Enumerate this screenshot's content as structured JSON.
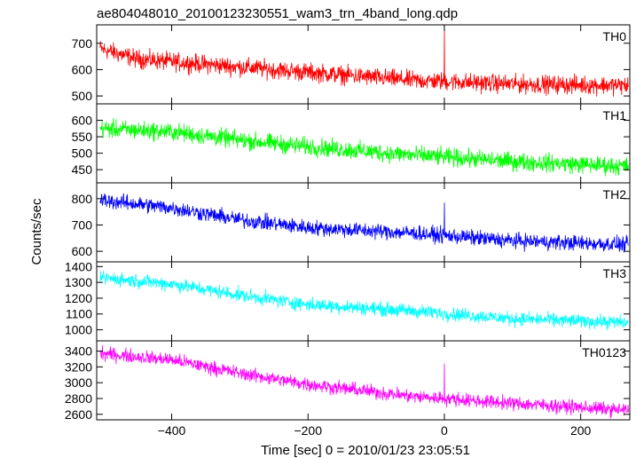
{
  "chart_data": {
    "type": "line",
    "title": "ae804048010_20100123230551_wam3_trn_4band_long.qdp",
    "xlabel": "Time [sec] 0 = 2010/01/23 23:05:51",
    "ylabel": "Counts/sec",
    "xlim": [
      -510,
      272
    ],
    "x_ticks": [
      -400,
      -200,
      0,
      200
    ],
    "x_tick_labels": [
      "−400",
      "−200",
      "0",
      "200"
    ],
    "grid": false,
    "panels": [
      {
        "name": "TH0",
        "color": "#ff0000",
        "ylim": [
          470,
          770
        ],
        "y_ticks": [
          500,
          600,
          700
        ],
        "trend": [
          [
            -505,
            680
          ],
          [
            -450,
            640
          ],
          [
            -350,
            620
          ],
          [
            -200,
            590
          ],
          [
            -50,
            560
          ],
          [
            100,
            545
          ],
          [
            270,
            540
          ]
        ],
        "noise": 38,
        "spike": {
          "x": 0,
          "y": 760
        }
      },
      {
        "name": "TH1",
        "color": "#00ff00",
        "ylim": [
          410,
          650
        ],
        "y_ticks": [
          450,
          500,
          550,
          600
        ],
        "trend": [
          [
            -505,
            575
          ],
          [
            -400,
            565
          ],
          [
            -300,
            540
          ],
          [
            -200,
            520
          ],
          [
            -50,
            495
          ],
          [
            100,
            475
          ],
          [
            270,
            460
          ]
        ],
        "noise": 30,
        "spike": null
      },
      {
        "name": "TH2",
        "color": "#0000ff",
        "ylim": [
          560,
          860
        ],
        "y_ticks": [
          600,
          700,
          800
        ],
        "trend": [
          [
            -505,
            795
          ],
          [
            -400,
            765
          ],
          [
            -300,
            720
          ],
          [
            -200,
            690
          ],
          [
            -50,
            670
          ],
          [
            100,
            640
          ],
          [
            270,
            625
          ]
        ],
        "noise": 32,
        "spike": {
          "x": 0,
          "y": 785
        }
      },
      {
        "name": "TH3",
        "color": "#00ffff",
        "ylim": [
          930,
          1430
        ],
        "y_ticks": [
          1000,
          1100,
          1200,
          1300,
          1400
        ],
        "trend": [
          [
            -505,
            1330
          ],
          [
            -400,
            1290
          ],
          [
            -300,
            1220
          ],
          [
            -200,
            1160
          ],
          [
            -50,
            1120
          ],
          [
            100,
            1070
          ],
          [
            270,
            1045
          ]
        ],
        "noise": 48,
        "spike": null
      },
      {
        "name": "TH0123",
        "color": "#ff00ff",
        "ylim": [
          2530,
          3530
        ],
        "y_ticks": [
          2600,
          2800,
          3000,
          3200,
          3400
        ],
        "trend": [
          [
            -505,
            3370
          ],
          [
            -400,
            3290
          ],
          [
            -300,
            3120
          ],
          [
            -200,
            2980
          ],
          [
            -50,
            2830
          ],
          [
            100,
            2740
          ],
          [
            270,
            2650
          ]
        ],
        "noise": 95,
        "spike": {
          "x": 0,
          "y": 3240
        }
      }
    ]
  }
}
